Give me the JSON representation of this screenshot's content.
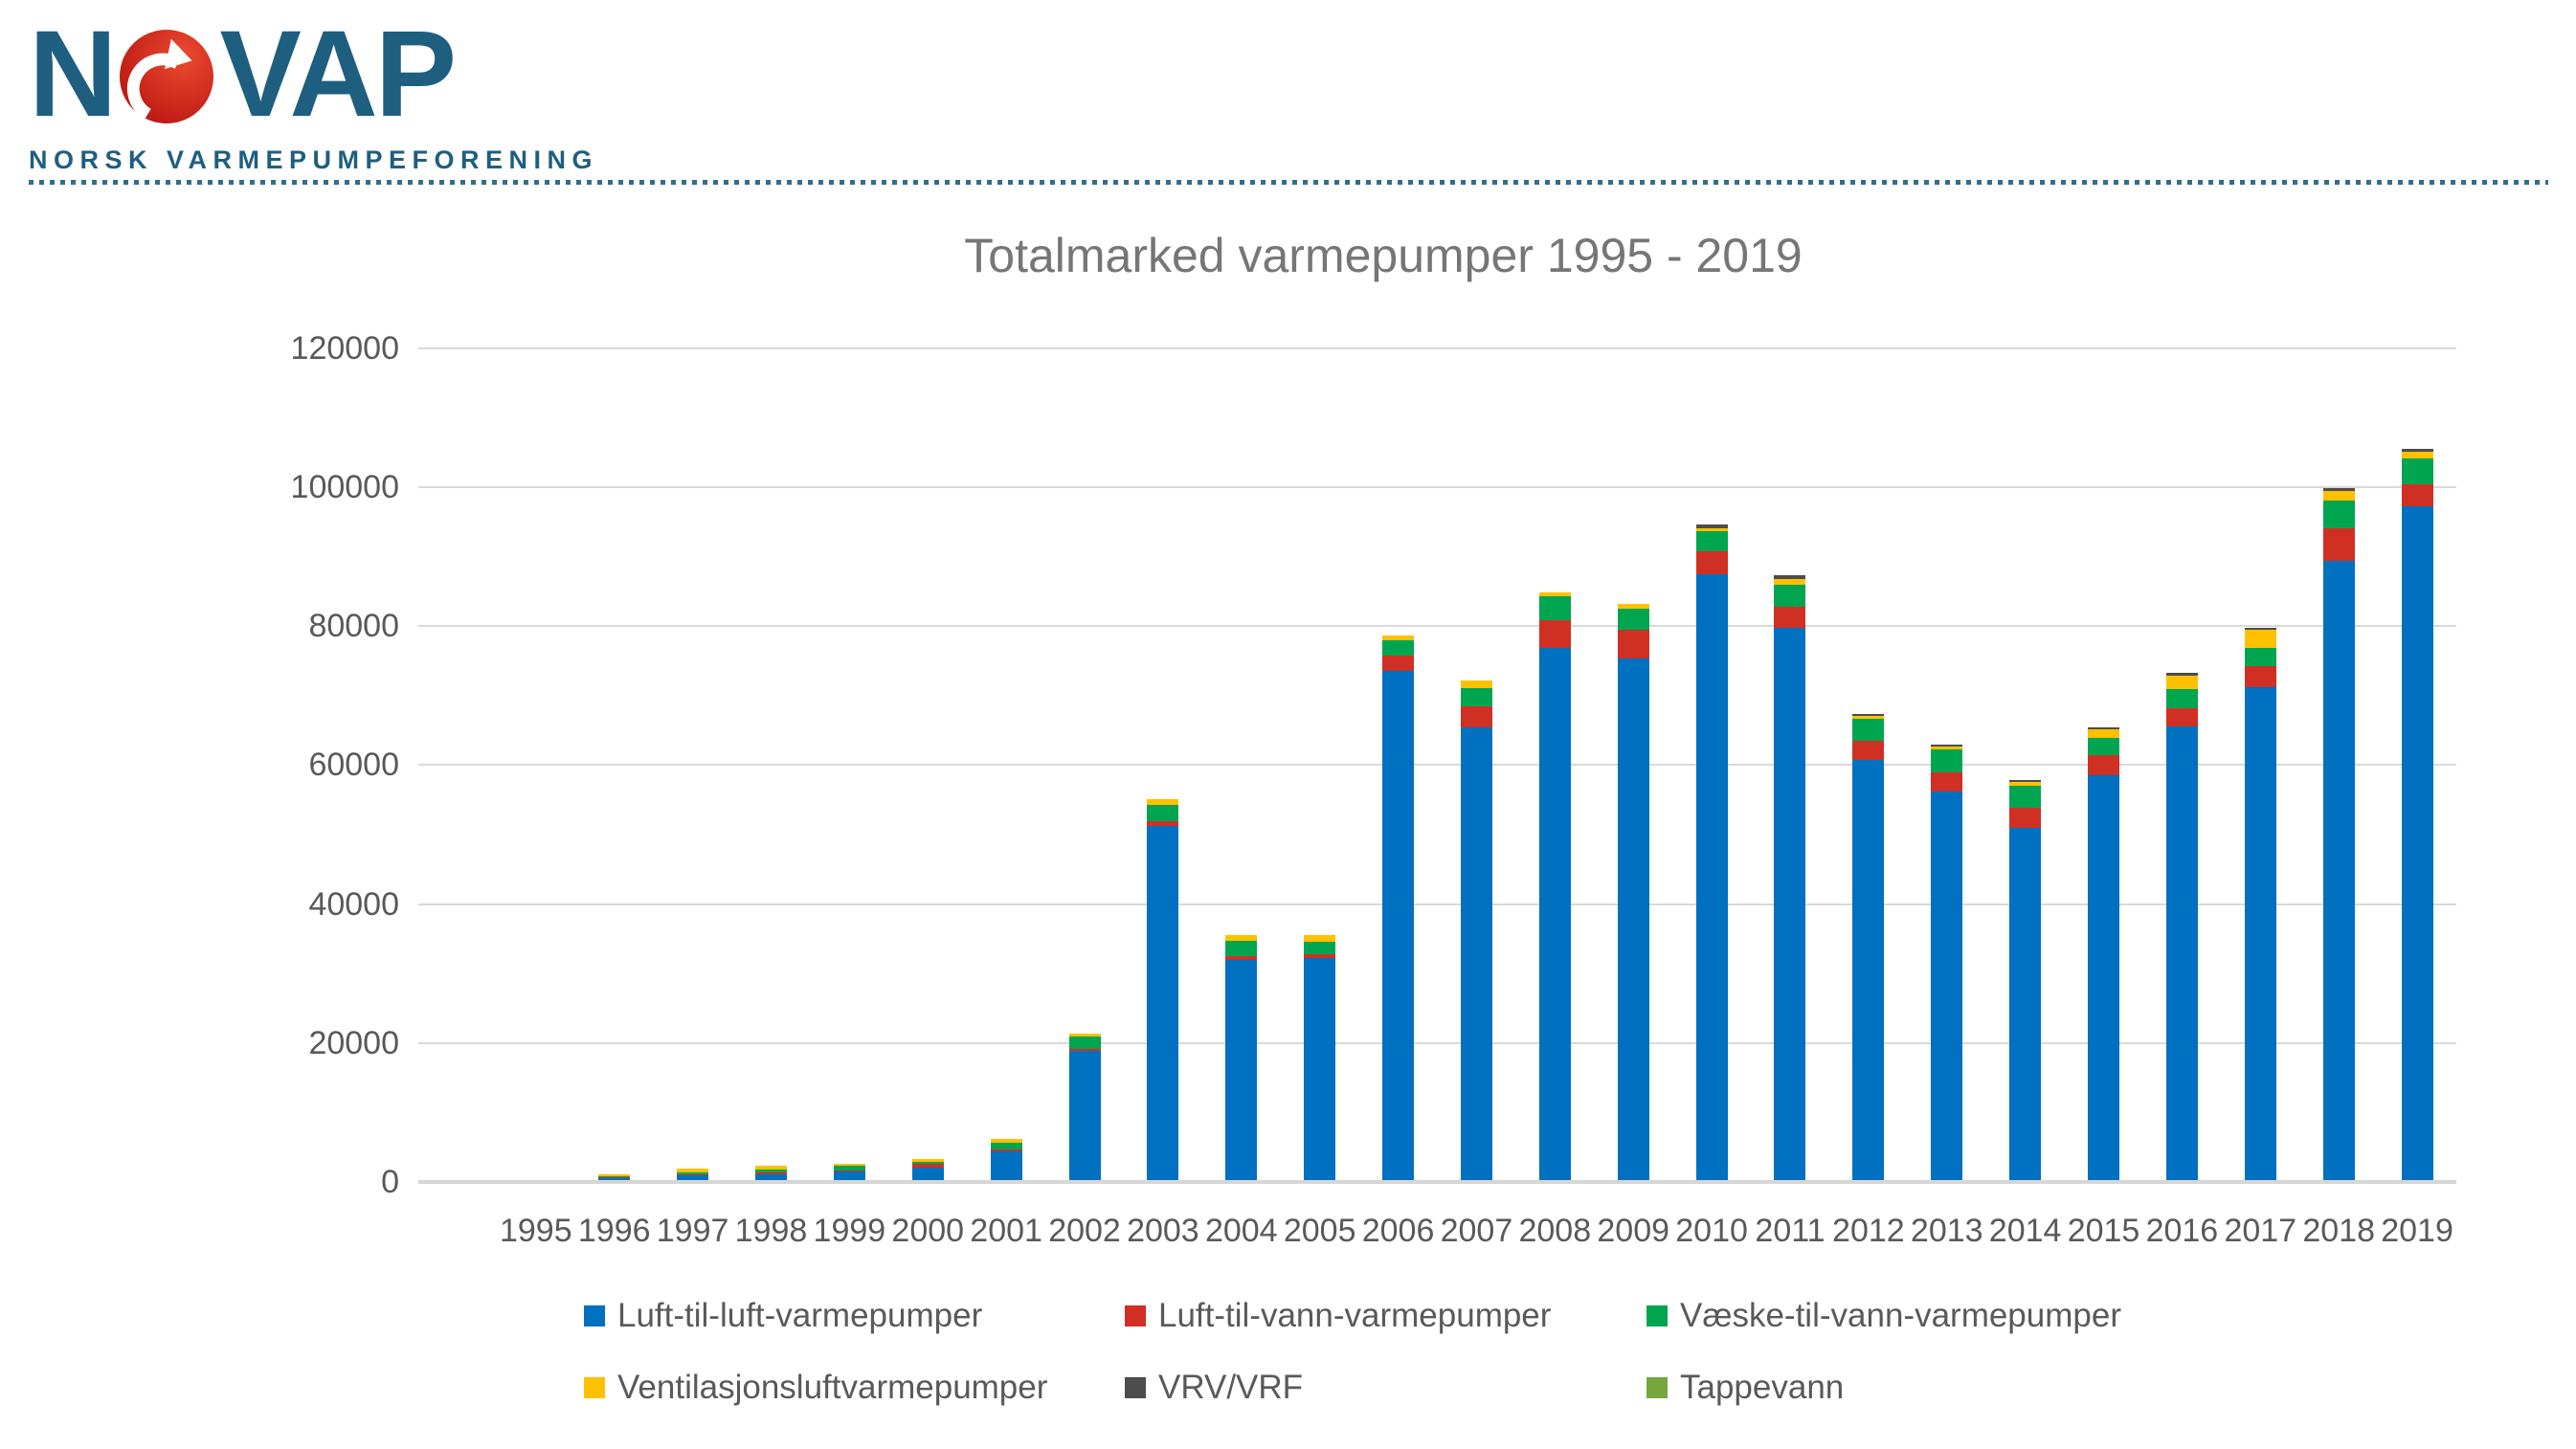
{
  "logo": {
    "brand_pre": "N",
    "brand_post": "VAP",
    "subtitle": "NORSK VARMEPUMPEFORENING",
    "brand_color": "#1E5F80",
    "circle_color": "#CC1F14"
  },
  "chart_data": {
    "type": "bar",
    "stacked": true,
    "title": "Totalmarked varmepumper 1995 - 2019",
    "xlabel": "",
    "ylabel": "",
    "ylim": [
      0,
      120000
    ],
    "ytick_step": 20000,
    "yticks": [
      "0",
      "20000",
      "40000",
      "60000",
      "80000",
      "100000",
      "120000"
    ],
    "grid": true,
    "legend_position": "bottom",
    "categories": [
      1995,
      1996,
      1997,
      1998,
      1999,
      2000,
      2001,
      2002,
      2003,
      2004,
      2005,
      2006,
      2007,
      2008,
      2009,
      2010,
      2011,
      2012,
      2013,
      2014,
      2015,
      2016,
      2017,
      2018,
      2019
    ],
    "series": [
      {
        "name": "Luft-til-luft-varmepumper",
        "color": "#0070C0",
        "values": [
          0,
          500,
          1050,
          1150,
          1500,
          2000,
          4400,
          18900,
          51300,
          31900,
          32200,
          73500,
          65400,
          76900,
          75300,
          87400,
          79800,
          60700,
          56200,
          51000,
          58600,
          65500,
          71200,
          89400,
          97200
        ]
      },
      {
        "name": "Luft-til-vann-varmepumper",
        "color": "#D03024",
        "values": [
          0,
          150,
          100,
          280,
          150,
          550,
          300,
          300,
          600,
          600,
          600,
          2200,
          3100,
          4000,
          4100,
          3300,
          3000,
          2800,
          2700,
          2900,
          2800,
          2700,
          3000,
          4700,
          3200
        ]
      },
      {
        "name": "Væske-til-vann-varmepumper",
        "color": "#00A550",
        "values": [
          0,
          180,
          190,
          330,
          700,
          400,
          1000,
          1700,
          2300,
          2200,
          1800,
          2300,
          2600,
          3400,
          3100,
          2900,
          3200,
          3100,
          3300,
          3100,
          2500,
          2700,
          2600,
          3900,
          3700
        ]
      },
      {
        "name": "Ventilasjonsluftvarmepumper",
        "color": "#FFC000",
        "values": [
          0,
          280,
          590,
          550,
          250,
          400,
          500,
          500,
          900,
          800,
          900,
          700,
          1000,
          600,
          700,
          400,
          700,
          500,
          500,
          550,
          1200,
          2000,
          2700,
          1500,
          1000
        ]
      },
      {
        "name": "VRV/VRF",
        "color": "#4D4D4D",
        "values": [
          0,
          0,
          0,
          0,
          0,
          0,
          0,
          0,
          0,
          0,
          0,
          0,
          0,
          0,
          0,
          600,
          600,
          300,
          300,
          300,
          300,
          400,
          300,
          400,
          400
        ]
      },
      {
        "name": "Tappevann",
        "color": "#76A73F",
        "values": [
          0,
          0,
          0,
          0,
          0,
          0,
          0,
          0,
          0,
          0,
          0,
          0,
          0,
          0,
          0,
          0,
          0,
          0,
          0,
          0,
          0,
          0,
          0,
          0,
          0
        ]
      }
    ]
  }
}
